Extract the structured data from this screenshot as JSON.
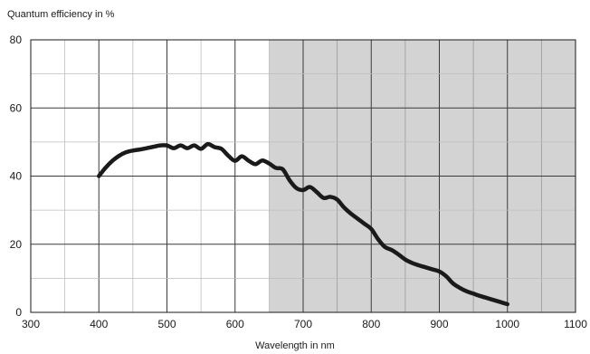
{
  "chart_data": {
    "type": "line",
    "title": "",
    "ylabel": "Quantum efficiency in %",
    "xlabel": "Wavelength in nm",
    "xlim": [
      300,
      1100
    ],
    "ylim": [
      0,
      80
    ],
    "x_ticks": [
      300,
      400,
      500,
      600,
      700,
      800,
      900,
      1000,
      1100
    ],
    "y_ticks": [
      0,
      20,
      40,
      60,
      80
    ],
    "x_minor_step": 50,
    "y_minor_step": 10,
    "grid": true,
    "shaded_region": {
      "x_from": 650,
      "x_to": 1100,
      "color": "#d3d3d3"
    },
    "series": [
      {
        "x": [
          400,
          410,
          420,
          430,
          440,
          450,
          460,
          470,
          480,
          490,
          500,
          510,
          520,
          530,
          540,
          550,
          560,
          570,
          580,
          590,
          600,
          610,
          620,
          630,
          640,
          650,
          660,
          670,
          680,
          690,
          700,
          710,
          720,
          730,
          740,
          750,
          760,
          770,
          780,
          790,
          800,
          810,
          820,
          830,
          840,
          850,
          860,
          870,
          880,
          890,
          900,
          910,
          920,
          930,
          940,
          950,
          960,
          970,
          980,
          990,
          1000
        ],
        "y": [
          40,
          42.5,
          44.5,
          46,
          47,
          47.5,
          47.8,
          48.2,
          48.6,
          49,
          49,
          48.2,
          49,
          48.2,
          49,
          48,
          49.4,
          48.5,
          48,
          46,
          44.5,
          45.8,
          44.5,
          43.5,
          44.6,
          43.7,
          42.4,
          42,
          38.8,
          36.5,
          35.9,
          36.8,
          35.3,
          33.6,
          33.9,
          33.1,
          30.8,
          29,
          27.5,
          26,
          24.5,
          21.5,
          19.2,
          18.3,
          17,
          15.5,
          14.5,
          13.8,
          13.2,
          12.6,
          12,
          10.6,
          8.5,
          7.2,
          6.2,
          5.5,
          4.8,
          4.2,
          3.6,
          3.0,
          2.4
        ],
        "color": "#1a1a1a"
      }
    ]
  }
}
